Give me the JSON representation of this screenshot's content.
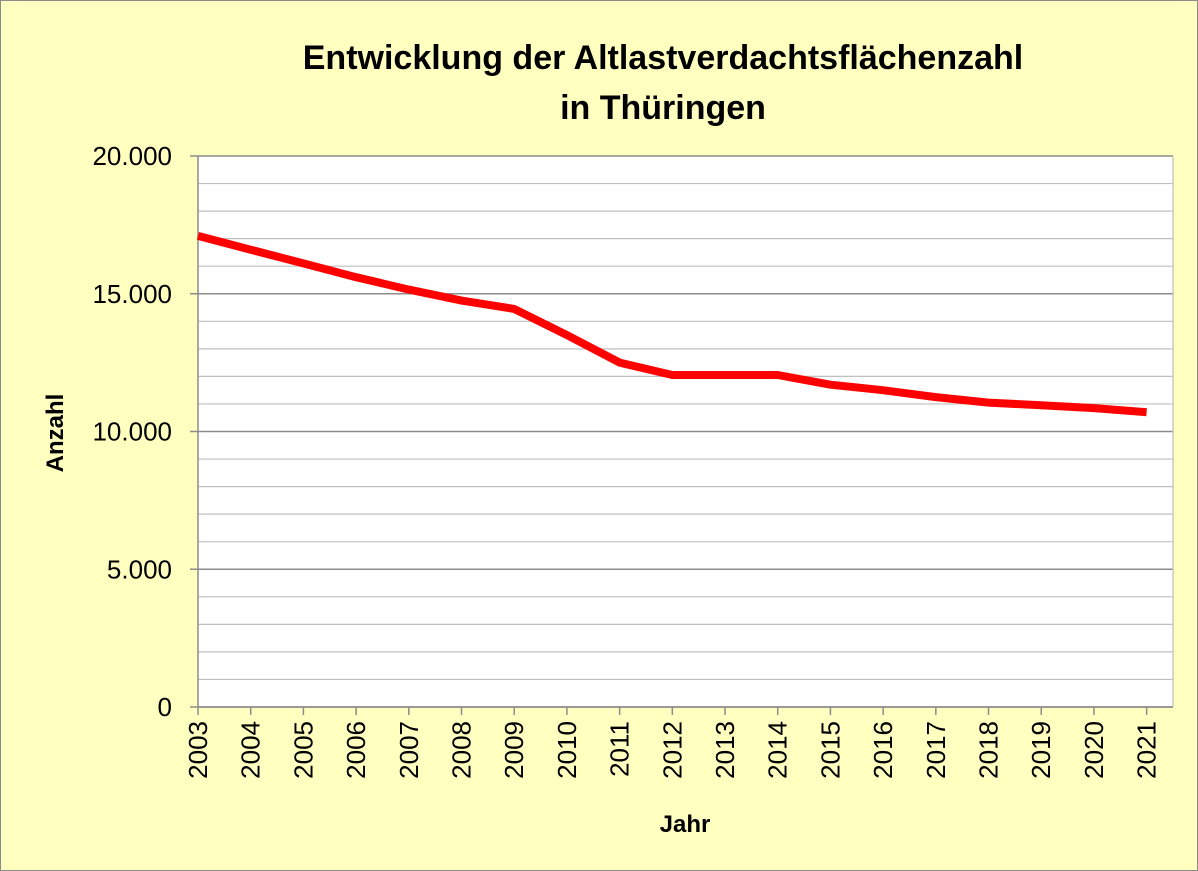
{
  "chart_data": {
    "type": "line",
    "title": [
      "Entwicklung der Altlastverdachtsflächenzahl",
      "in Thüringen"
    ],
    "xlabel": "Jahr",
    "ylabel": "Anzahl",
    "x": [
      "2003",
      "2004",
      "2005",
      "2006",
      "2007",
      "2008",
      "2009",
      "2010",
      "2011",
      "2012",
      "2013",
      "2014",
      "2015",
      "2016",
      "2017",
      "2018",
      "2019",
      "2020",
      "2021"
    ],
    "series": [
      {
        "name": "",
        "values": [
          17100,
          16600,
          16100,
          15600,
          15150,
          14750,
          14450,
          13500,
          12500,
          12050,
          12050,
          12050,
          11700,
          11500,
          11250,
          11050,
          10950,
          10850,
          10700
        ]
      }
    ],
    "yticks": [
      0,
      5000,
      10000,
      15000,
      20000
    ],
    "ytick_labels": [
      "0",
      "5.000",
      "10.000",
      "15.000",
      "20.000"
    ],
    "ylim": [
      0,
      20000
    ],
    "minor_grid_step": 1000,
    "grid": true,
    "legend": "none",
    "colors": {
      "background": "#ffffc0",
      "plot_area": "#ffffff",
      "line": "#ff0000",
      "major_grid": "#8c8c8c",
      "minor_grid": "#bfbfbf",
      "axis": "#8c8c8c"
    }
  }
}
